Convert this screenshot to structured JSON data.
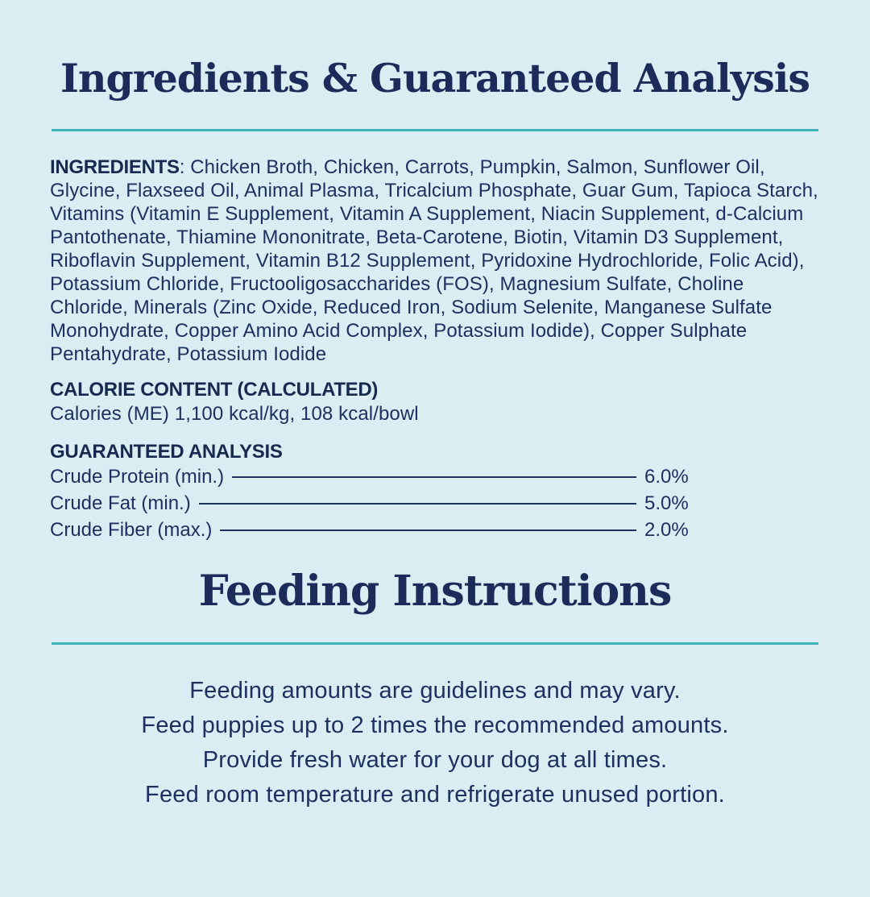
{
  "colors": {
    "background": "#d9edf2",
    "text_navy": "#1c2f5e",
    "divider_teal": "#3cb4ba"
  },
  "section1": {
    "title": "Ingredients & Guaranteed Analysis"
  },
  "ingredients": {
    "label": "INGREDIENTS",
    "text": ": Chicken Broth, Chicken, Carrots, Pumpkin, Salmon, Sunflower Oil, Glycine, Flaxseed Oil, Animal Plasma, Tricalcium Phosphate, Guar Gum, Tapioca Starch, Vitamins (Vitamin E Supplement, Vitamin A Supplement, Niacin Supplement, d-Calcium Pantothenate, Thiamine Mononitrate, Beta-Carotene, Biotin, Vitamin D3 Supplement, Riboflavin Supplement, Vitamin B12 Supplement, Pyridoxine Hydrochloride, Folic Acid), Potassium Chloride, Fructooligosaccharides (FOS), Magnesium Sulfate, Choline Chloride, Minerals (Zinc Oxide, Reduced Iron, Sodium Selenite, Manganese Sulfate Monohydrate, Copper Amino Acid Complex, Potassium Iodide), Copper Sulphate Pentahydrate, Potassium Iodide"
  },
  "calorie_content": {
    "heading": "CALORIE CONTENT (CALCULATED)",
    "text": "Calories (ME) 1,100 kcal/kg, 108 kcal/bowl"
  },
  "guaranteed_analysis": {
    "heading": "GUARANTEED ANALYSIS",
    "rows": [
      {
        "label": "Crude Protein (min.)",
        "value": "6.0%"
      },
      {
        "label": "Crude Fat (min.)",
        "value": "5.0%"
      },
      {
        "label": "Crude Fiber (max.)",
        "value": "2.0%"
      }
    ]
  },
  "section2": {
    "title": "Feeding Instructions"
  },
  "feeding_instructions": {
    "lines": [
      "Feeding amounts are guidelines and may vary.",
      "Feed puppies up to 2 times the recommended amounts.",
      "Provide fresh water for your dog at all times.",
      "Feed room temperature and refrigerate unused portion."
    ]
  }
}
